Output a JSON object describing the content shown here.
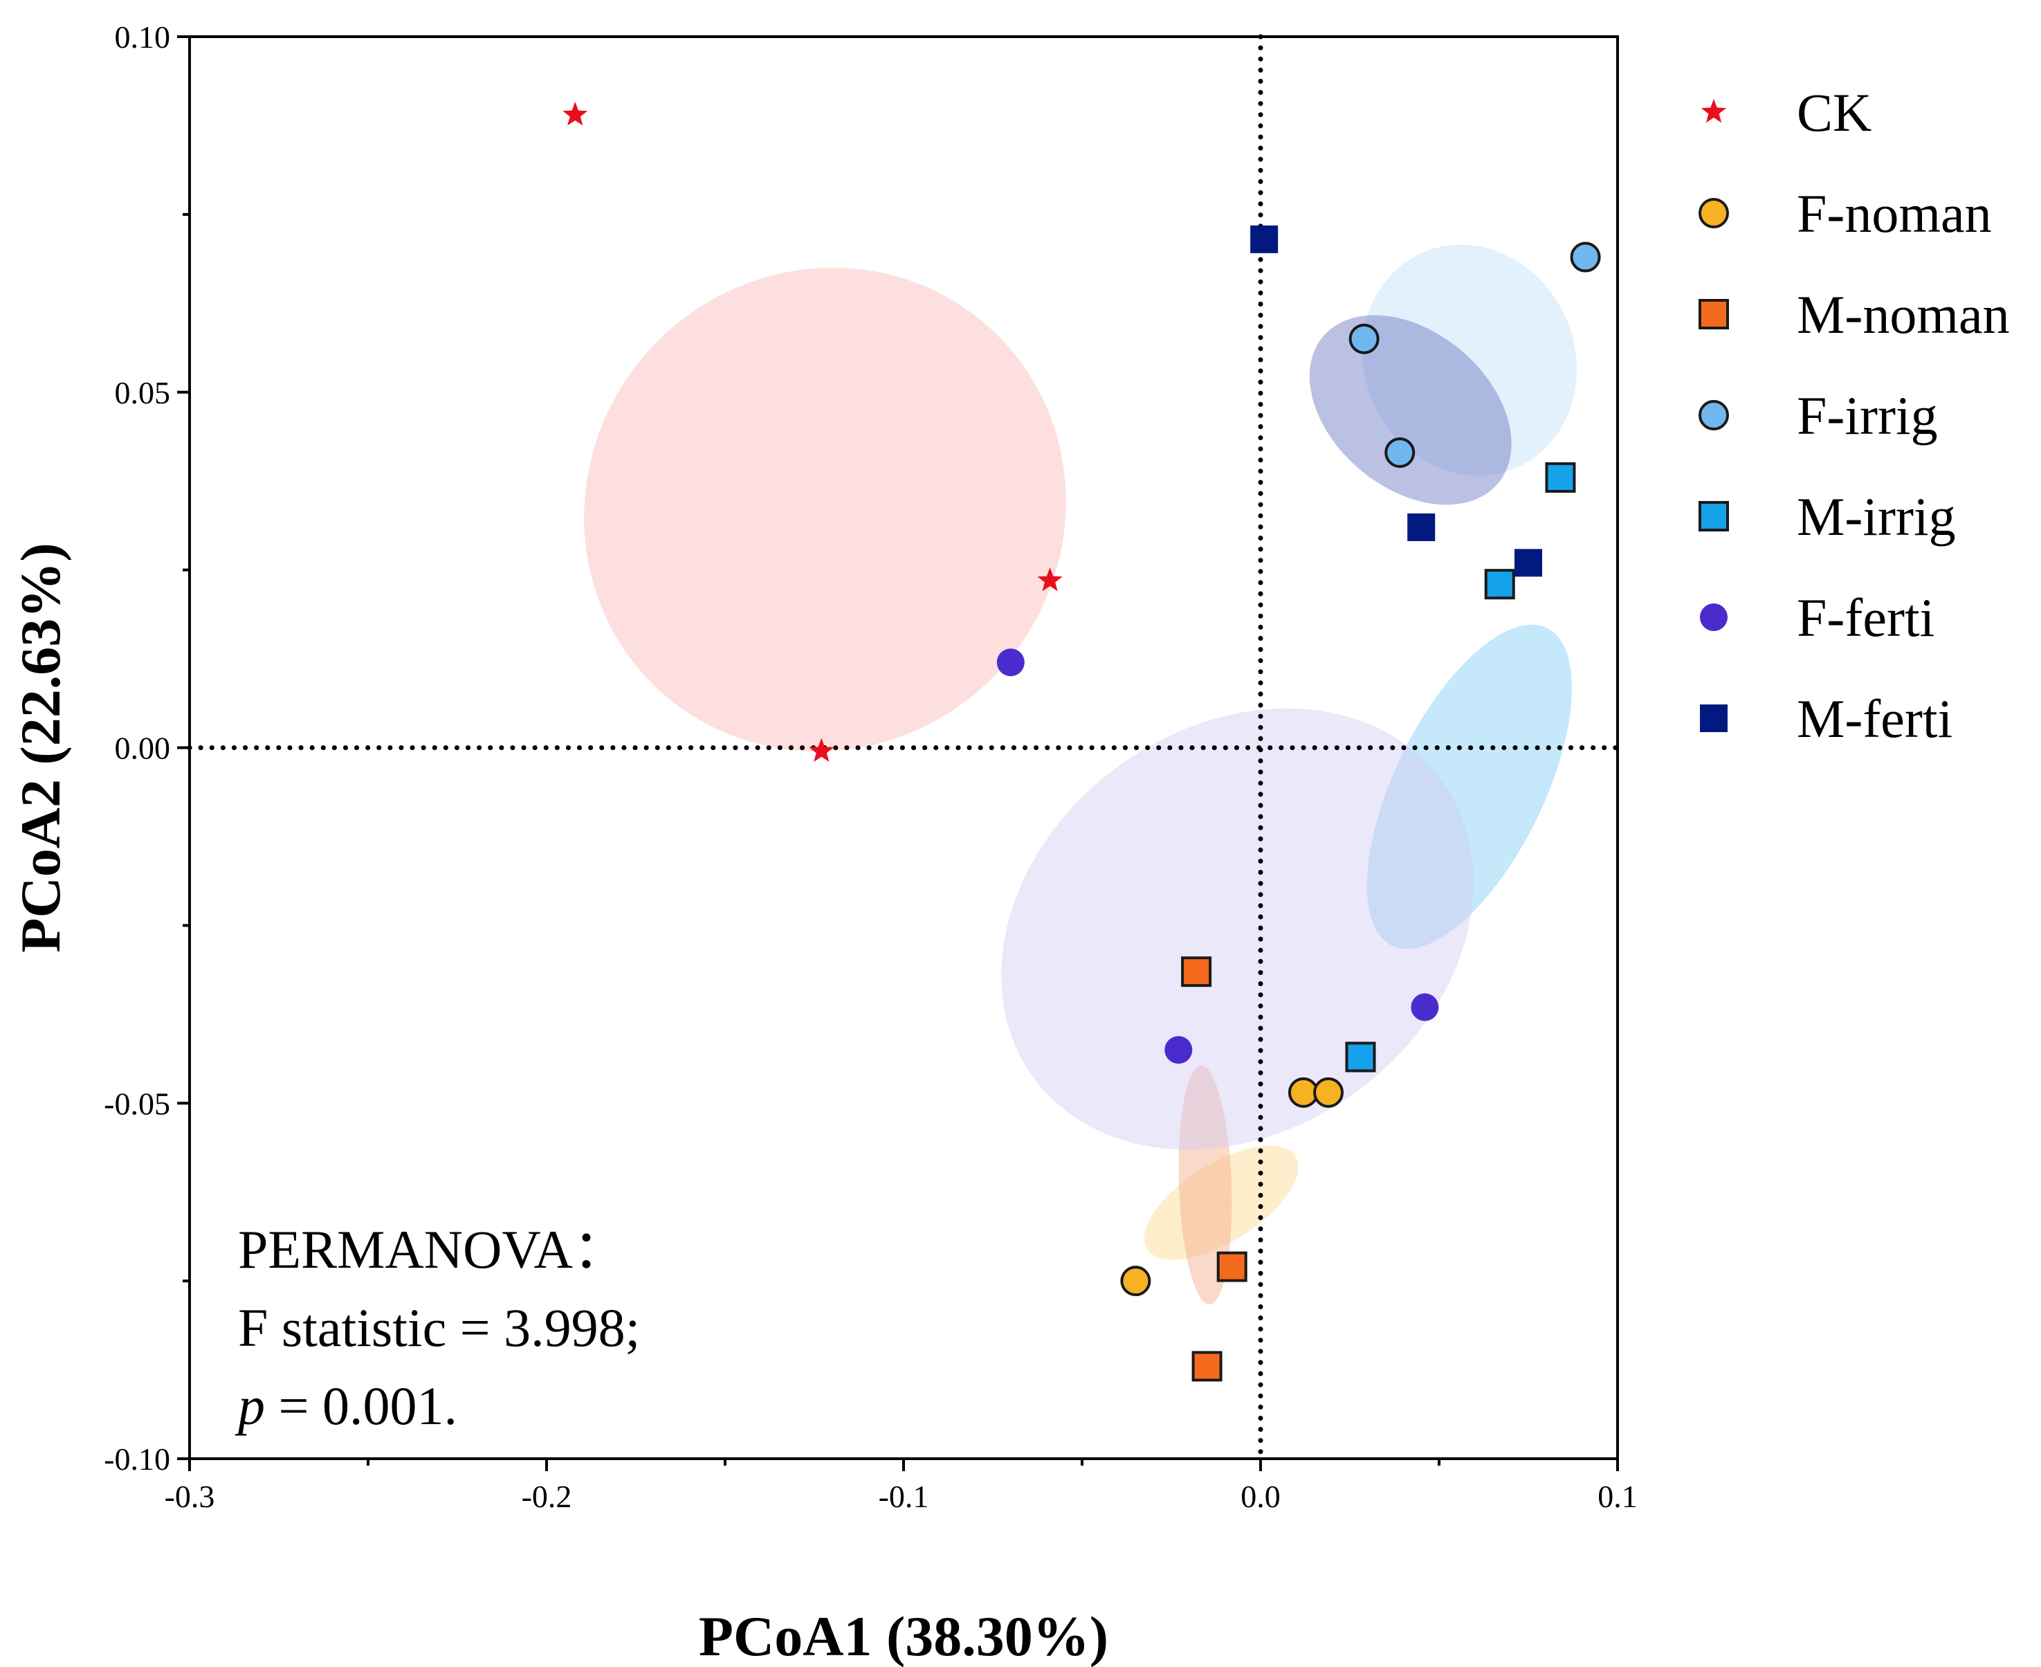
{
  "chart_data": {
    "type": "scatter",
    "xlabel": "PCoA1 (38.30%)",
    "ylabel": "PCoA2 (22.63%)",
    "xlim": [
      -0.3,
      0.1
    ],
    "ylim": [
      -0.1,
      0.1
    ],
    "x_ticks": [
      -0.3,
      -0.2,
      -0.1,
      0.0,
      0.1
    ],
    "x_tick_labels": [
      "-0.3",
      "-0.2",
      "-0.1",
      "0.0",
      "0.1"
    ],
    "y_ticks": [
      -0.1,
      -0.05,
      0.0,
      0.05,
      0.1
    ],
    "y_tick_labels": [
      "-0.10",
      "-0.05",
      "0.00",
      "0.05",
      "0.10"
    ],
    "reference_lines": {
      "x": 0.0,
      "y": 0.0,
      "style": "dotted"
    },
    "legend_position": "right",
    "series": [
      {
        "name": "CK",
        "marker": "star",
        "color": "#e8101e",
        "outline": "none",
        "ellipse_color": "#f8b7b5",
        "points": [
          [
            -0.192,
            0.089
          ],
          [
            -0.123,
            -0.0005
          ],
          [
            -0.059,
            0.0235
          ]
        ],
        "ellipse": {
          "cx": -0.122,
          "cy": 0.0335,
          "rx": 0.0665,
          "ry": 0.0345,
          "angle_deg": 138
        }
      },
      {
        "name": "F-noman",
        "marker": "circle",
        "color": "#f6b223",
        "outline": "#1a1a1a",
        "ellipse_color": "#fdd98c",
        "points": [
          [
            -0.035,
            -0.075
          ],
          [
            0.012,
            -0.0485
          ],
          [
            0.019,
            -0.0485
          ]
        ],
        "ellipse": {
          "cx": -0.011,
          "cy": -0.064,
          "rx": 0.0245,
          "ry": 0.0055,
          "angle_deg": 32
        }
      },
      {
        "name": "M-noman",
        "marker": "square",
        "color": "#f36a1c",
        "outline": "#1a1a1a",
        "ellipse_color": "#f3ab8a",
        "points": [
          [
            -0.018,
            -0.0315
          ],
          [
            -0.008,
            -0.073
          ],
          [
            -0.015,
            -0.087
          ]
        ],
        "ellipse": {
          "cx": -0.0155,
          "cy": -0.0615,
          "rx": 0.0335,
          "ry": 0.0037,
          "angle_deg": 92
        }
      },
      {
        "name": "F-irrig",
        "marker": "circle",
        "color": "#71b7ef",
        "outline": "#1a1a1a",
        "ellipse_color": "#c2e0f8",
        "points": [
          [
            0.029,
            0.0575
          ],
          [
            0.039,
            0.0415
          ],
          [
            0.091,
            0.069
          ]
        ],
        "ellipse": {
          "cx": 0.0585,
          "cy": 0.0545,
          "rx": 0.0295,
          "ry": 0.0165,
          "angle_deg": 24
        }
      },
      {
        "name": "M-irrig",
        "marker": "square",
        "color": "#15a2ea",
        "outline": "#1a1a1a",
        "ellipse_color": "#7fcbf4",
        "points": [
          [
            0.028,
            -0.0435
          ],
          [
            0.067,
            0.023
          ],
          [
            0.084,
            0.038
          ]
        ],
        "ellipse": {
          "cx": 0.0585,
          "cy": -0.0055,
          "rx": 0.0495,
          "ry": 0.0105,
          "angle_deg": 64
        }
      },
      {
        "name": "F-ferti",
        "marker": "circle",
        "color": "#4a2ccc",
        "outline": "none",
        "ellipse_color": "#d3cdf5",
        "points": [
          [
            -0.07,
            0.012
          ],
          [
            -0.023,
            -0.0425
          ],
          [
            0.046,
            -0.0365
          ]
        ],
        "ellipse": {
          "cx": -0.0065,
          "cy": -0.0255,
          "rx": 0.0565,
          "ry": 0.0355,
          "angle_deg": 126
        }
      },
      {
        "name": "M-ferti",
        "marker": "square",
        "color": "#021a7f",
        "outline": "none",
        "ellipse_color": "#6675c0",
        "points": [
          [
            0.001,
            0.0715
          ],
          [
            0.045,
            0.031
          ],
          [
            0.075,
            0.026
          ]
        ],
        "ellipse": {
          "cx": 0.042,
          "cy": 0.0475,
          "rx": 0.032,
          "ry": 0.011,
          "angle_deg": 140
        }
      }
    ],
    "annotations": [
      {
        "text": "PERMANOVA："
      },
      {
        "text": "F statistic = 3.998;"
      },
      {
        "text_italic": "p",
        "text": " = 0.001."
      }
    ]
  }
}
